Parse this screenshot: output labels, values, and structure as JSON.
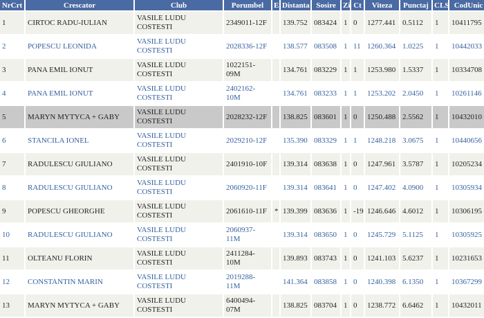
{
  "table": {
    "header": [
      "NrCrt",
      "Crescator",
      "Club",
      "Porumbel",
      "E",
      "Distanta",
      "Sosire",
      "Zi",
      "Ct",
      "Viteza",
      "Punctaj",
      "CLS",
      "CodUnic"
    ],
    "rows": [
      {
        "nr": "1",
        "crescator": "CIRTOC RADU-IULIAN",
        "club": "VASILE LUDU COSTESTI",
        "porumbel": "2349011-12F",
        "distanta": "139.752",
        "sosire": "083424",
        "zi": "1",
        "ct": "0",
        "viteza": "1277.441",
        "punctaj": "0.5112",
        "cls": "1",
        "cod": "10411795"
      },
      {
        "nr": "2",
        "crescator": "POPESCU LEONIDA",
        "club": "VASILE LUDU COSTESTI",
        "porumbel": "2028336-12F",
        "distanta": "138.577",
        "sosire": "083508",
        "zi": "1",
        "ct": "11",
        "viteza": "1260.364",
        "punctaj": "1.0225",
        "cls": "1",
        "cod": "10442033"
      },
      {
        "nr": "3",
        "crescator": "PANA EMIL IONUT",
        "club": "VASILE LUDU COSTESTI",
        "porumbel": "1022151-09M",
        "distanta": "134.761",
        "sosire": "083229",
        "zi": "1",
        "ct": "1",
        "viteza": "1253.980",
        "punctaj": "1.5337",
        "cls": "1",
        "cod": "10334708"
      },
      {
        "nr": "4",
        "crescator": "PANA EMIL IONUT",
        "club": "VASILE LUDU COSTESTI",
        "porumbel": "2402162-10M",
        "distanta": "134.761",
        "sosire": "083233",
        "zi": "1",
        "ct": "1",
        "viteza": "1253.202",
        "punctaj": "2.0450",
        "cls": "1",
        "cod": "10261146"
      },
      {
        "nr": "5",
        "crescator": "MARYN MYTYCA + GABY",
        "club": "VASILE LUDU COSTESTI",
        "porumbel": "2028232-12F",
        "distanta": "138.825",
        "sosire": "083601",
        "zi": "1",
        "ct": "0",
        "viteza": "1250.488",
        "punctaj": "2.5562",
        "cls": "1",
        "cod": "10432010"
      },
      {
        "nr": "6",
        "crescator": "STANCILA IONEL",
        "club": "VASILE LUDU COSTESTI",
        "porumbel": "2029210-12F",
        "distanta": "135.390",
        "sosire": "083329",
        "zi": "1",
        "ct": "1",
        "viteza": "1248.218",
        "punctaj": "3.0675",
        "cls": "1",
        "cod": "10440656"
      },
      {
        "nr": "7",
        "crescator": "RADULESCU GIULIANO",
        "club": "VASILE LUDU COSTESTI",
        "porumbel": "2401910-10F",
        "distanta": "139.314",
        "sosire": "083638",
        "zi": "1",
        "ct": "0",
        "viteza": "1247.961",
        "punctaj": "3.5787",
        "cls": "1",
        "cod": "10205234"
      },
      {
        "nr": "8",
        "crescator": "RADULESCU GIULIANO",
        "club": "VASILE LUDU COSTESTI",
        "porumbel": "2060920-11F",
        "distanta": "139.314",
        "sosire": "083641",
        "zi": "1",
        "ct": "0",
        "viteza": "1247.402",
        "punctaj": "4.0900",
        "cls": "1",
        "cod": "10305934"
      },
      {
        "nr": "9",
        "crescator": "POPESCU GHEORGHE",
        "club": "VASILE LUDU COSTESTI",
        "porumbel": "2061610-11F",
        "e": "*",
        "distanta": "139.399",
        "sosire": "083636",
        "zi": "1",
        "ct": "-19",
        "viteza": "1246.646",
        "punctaj": "4.6012",
        "cls": "1",
        "cod": "10306195"
      },
      {
        "nr": "10",
        "crescator": "RADULESCU GIULIANO",
        "club": "VASILE LUDU COSTESTI",
        "porumbel": "2060937-11M",
        "distanta": "139.314",
        "sosire": "083650",
        "zi": "1",
        "ct": "0",
        "viteza": "1245.729",
        "punctaj": "5.1125",
        "cls": "1",
        "cod": "10305925"
      },
      {
        "nr": "11",
        "crescator": "OLTEANU FLORIN",
        "club": "VASILE LUDU COSTESTI",
        "porumbel": "2411284-10M",
        "distanta": "139.893",
        "sosire": "083743",
        "zi": "1",
        "ct": "0",
        "viteza": "1241.103",
        "punctaj": "5.6237",
        "cls": "1",
        "cod": "10231653"
      },
      {
        "nr": "12",
        "crescator": "CONSTANTIN MARIN",
        "club": "VASILE LUDU COSTESTI",
        "porumbel": "2019288-11M",
        "distanta": "141.364",
        "sosire": "083858",
        "zi": "1",
        "ct": "0",
        "viteza": "1240.398",
        "punctaj": "6.1350",
        "cls": "1",
        "cod": "10367299"
      },
      {
        "nr": "13",
        "crescator": "MARYN MYTYCA + GABY",
        "club": "VASILE LUDU COSTESTI",
        "porumbel": "6400494-07M",
        "distanta": "138.825",
        "sosire": "083704",
        "zi": "1",
        "ct": "0",
        "viteza": "1238.772",
        "punctaj": "6.6462",
        "cls": "1",
        "cod": "10432011"
      }
    ],
    "highlighted_row": 4
  }
}
